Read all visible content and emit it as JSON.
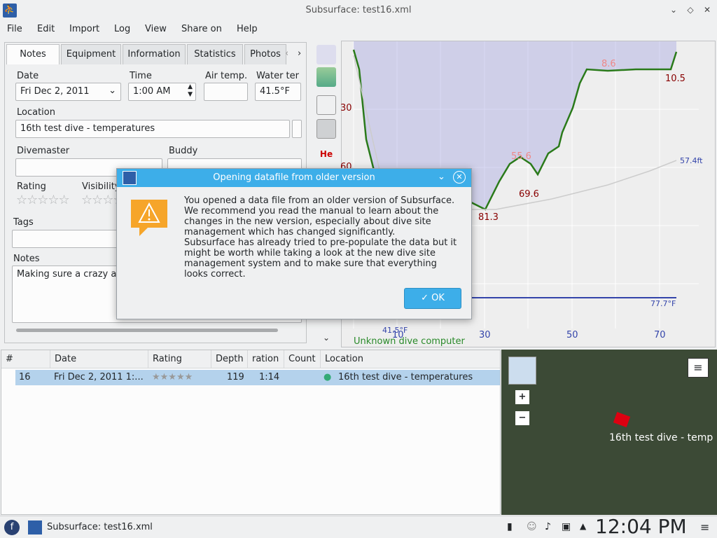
{
  "window": {
    "title": "Subsurface: test16.xml"
  },
  "menu": [
    "File",
    "Edit",
    "Import",
    "Log",
    "View",
    "Share on",
    "Help"
  ],
  "tabs": [
    "Notes",
    "Equipment",
    "Information",
    "Statistics",
    "Photos"
  ],
  "notes": {
    "date_label": "Date",
    "date_value": "Fri Dec 2, 2011",
    "time_label": "Time",
    "time_value": "1:00 AM",
    "airtemp_label": "Air temp.",
    "airtemp_value": "",
    "watertemp_label": "Water ter",
    "watertemp_value": "41.5°F",
    "location_label": "Location",
    "location_value": "16th test dive - temperatures",
    "divemaster_label": "Divemaster",
    "buddy_label": "Buddy",
    "rating_label": "Rating",
    "visibility_label": "Visibility",
    "tags_label": "Tags",
    "notes_label": "Notes",
    "notes_value": "Making sure a crazy ar"
  },
  "chart": {
    "y_ticks": [
      "30",
      "60"
    ],
    "x_ticks": [
      "10",
      "30",
      "50",
      "70"
    ],
    "depth_labels": [
      "8.6",
      "10.5",
      "55.6",
      "69.6",
      "81.3"
    ],
    "right_labels": [
      "57.4ft",
      "77.7°F"
    ],
    "temp_label": "41.5°F",
    "computer": "Unknown dive computer"
  },
  "side_tools": [
    "He"
  ],
  "dive_list": {
    "headers": [
      "#",
      "Date",
      "Rating",
      "Depth",
      "ration",
      "Count",
      "Location"
    ],
    "row": {
      "num": "16",
      "date": "Fri Dec 2, 2011 1:...",
      "rating": "★★★★★",
      "depth": "119",
      "duration": "1:14",
      "count": "",
      "location": "16th test dive - temperatures"
    }
  },
  "map": {
    "label": "16th test dive - temp",
    "zoom_in": "+",
    "zoom_out": "−"
  },
  "taskbar": {
    "app": "Subsurface: test16.xml",
    "clock": "12:04 PM"
  },
  "dialog": {
    "title": "Opening datafile from older version",
    "message": "You opened a data file from an older version of Subsurface.\nWe recommend you read the manual to learn about the\nchanges in the new version, especially about dive site\nmanagement which has changed significantly.\nSubsurface has already tried to pre-populate the data but it\nmight be worth while taking a look at the new dive site\nmanagement system and to make sure that everything\nlooks correct.",
    "ok": "OK"
  }
}
